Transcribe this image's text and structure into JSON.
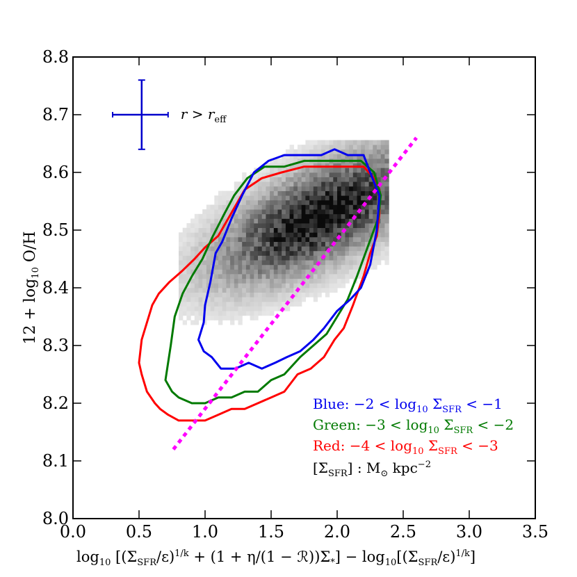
{
  "chart_data": {
    "type": "scatter",
    "xlabel": "log₁₀[(Σ_SFR/ε)^{1/k} + (1+η/(1−ℛ))Σ_*] − log₁₀[(Σ_SFR/ε)^{1/k}]",
    "ylabel": "12 + log₁₀ O/H",
    "xlim": [
      0.0,
      3.5
    ],
    "ylim": [
      8.0,
      8.8
    ],
    "x_ticks": [
      "0.0",
      "0.5",
      "1.0",
      "1.5",
      "2.0",
      "2.5",
      "3.0",
      "3.5"
    ],
    "y_ticks": [
      "8.0",
      "8.1",
      "8.2",
      "8.3",
      "8.4",
      "8.5",
      "8.6",
      "8.7",
      "8.8"
    ],
    "error_bar": {
      "label": "r > r_eff",
      "x": 0.52,
      "y": 8.7,
      "xerr": [
        0.3,
        0.72
      ],
      "yerr": [
        8.64,
        8.76
      ],
      "color": "#0000cc"
    },
    "fit_line": {
      "style": "dotted",
      "color": "#ff00ff",
      "points": [
        [
          0.76,
          8.12
        ],
        [
          2.6,
          8.66
        ]
      ]
    },
    "density": {
      "color": "grayscale",
      "x_range": [
        0.85,
        2.33
      ],
      "y_range": [
        8.18,
        8.63
      ],
      "peak": [
        1.85,
        8.52
      ]
    },
    "series": [
      {
        "name": "Blue:",
        "range": "−2 < log₁₀ Σ_SFR < −1",
        "color": "#0000ee",
        "contour": [
          [
            0.95,
            8.31
          ],
          [
            0.99,
            8.34
          ],
          [
            1.0,
            8.37
          ],
          [
            1.04,
            8.41
          ],
          [
            1.08,
            8.46
          ],
          [
            1.13,
            8.48
          ],
          [
            1.2,
            8.52
          ],
          [
            1.28,
            8.56
          ],
          [
            1.37,
            8.6
          ],
          [
            1.48,
            8.62
          ],
          [
            1.6,
            8.63
          ],
          [
            1.75,
            8.63
          ],
          [
            1.88,
            8.63
          ],
          [
            1.98,
            8.64
          ],
          [
            2.08,
            8.63
          ],
          [
            2.2,
            8.63
          ],
          [
            2.25,
            8.6
          ],
          [
            2.32,
            8.56
          ],
          [
            2.3,
            8.5
          ],
          [
            2.25,
            8.44
          ],
          [
            2.18,
            8.4
          ],
          [
            2.1,
            8.38
          ],
          [
            2.0,
            8.36
          ],
          [
            1.9,
            8.33
          ],
          [
            1.82,
            8.31
          ],
          [
            1.72,
            8.29
          ],
          [
            1.62,
            8.28
          ],
          [
            1.53,
            8.27
          ],
          [
            1.43,
            8.26
          ],
          [
            1.33,
            8.27
          ],
          [
            1.23,
            8.26
          ],
          [
            1.12,
            8.26
          ],
          [
            1.05,
            8.28
          ],
          [
            0.99,
            8.29
          ],
          [
            0.95,
            8.31
          ]
        ]
      },
      {
        "name": "Green:",
        "range": "−3 < log₁₀ Σ_SFR < −2",
        "color": "#007a00",
        "contour": [
          [
            0.7,
            8.24
          ],
          [
            0.72,
            8.27
          ],
          [
            0.74,
            8.3
          ],
          [
            0.77,
            8.35
          ],
          [
            0.83,
            8.39
          ],
          [
            0.9,
            8.42
          ],
          [
            0.98,
            8.45
          ],
          [
            1.06,
            8.49
          ],
          [
            1.15,
            8.53
          ],
          [
            1.22,
            8.56
          ],
          [
            1.32,
            8.59
          ],
          [
            1.45,
            8.61
          ],
          [
            1.6,
            8.61
          ],
          [
            1.75,
            8.62
          ],
          [
            1.9,
            8.62
          ],
          [
            2.05,
            8.62
          ],
          [
            2.18,
            8.62
          ],
          [
            2.28,
            8.6
          ],
          [
            2.33,
            8.56
          ],
          [
            2.31,
            8.52
          ],
          [
            2.23,
            8.47
          ],
          [
            2.15,
            8.42
          ],
          [
            2.08,
            8.38
          ],
          [
            2.0,
            8.35
          ],
          [
            1.92,
            8.32
          ],
          [
            1.82,
            8.3
          ],
          [
            1.72,
            8.28
          ],
          [
            1.6,
            8.25
          ],
          [
            1.5,
            8.24
          ],
          [
            1.4,
            8.22
          ],
          [
            1.3,
            8.22
          ],
          [
            1.2,
            8.21
          ],
          [
            1.1,
            8.21
          ],
          [
            1.0,
            8.2
          ],
          [
            0.9,
            8.2
          ],
          [
            0.8,
            8.21
          ],
          [
            0.75,
            8.22
          ],
          [
            0.7,
            8.24
          ]
        ]
      },
      {
        "name": "Red:",
        "range": "−4 < log₁₀ Σ_SFR < −3",
        "color": "#ff0000",
        "contour": [
          [
            0.62,
            8.2
          ],
          [
            0.56,
            8.22
          ],
          [
            0.52,
            8.25
          ],
          [
            0.5,
            8.27
          ],
          [
            0.52,
            8.31
          ],
          [
            0.56,
            8.34
          ],
          [
            0.6,
            8.37
          ],
          [
            0.65,
            8.39
          ],
          [
            0.73,
            8.41
          ],
          [
            0.83,
            8.43
          ],
          [
            0.92,
            8.45
          ],
          [
            1.0,
            8.47
          ],
          [
            1.1,
            8.49
          ],
          [
            1.2,
            8.53
          ],
          [
            1.3,
            8.57
          ],
          [
            1.43,
            8.59
          ],
          [
            1.58,
            8.6
          ],
          [
            1.75,
            8.61
          ],
          [
            1.92,
            8.61
          ],
          [
            2.08,
            8.61
          ],
          [
            2.2,
            8.61
          ],
          [
            2.28,
            8.59
          ],
          [
            2.32,
            8.57
          ],
          [
            2.32,
            8.53
          ],
          [
            2.3,
            8.49
          ],
          [
            2.25,
            8.46
          ],
          [
            2.2,
            8.42
          ],
          [
            2.12,
            8.37
          ],
          [
            2.05,
            8.33
          ],
          [
            1.98,
            8.31
          ],
          [
            1.9,
            8.28
          ],
          [
            1.8,
            8.26
          ],
          [
            1.7,
            8.25
          ],
          [
            1.6,
            8.22
          ],
          [
            1.5,
            8.21
          ],
          [
            1.4,
            8.2
          ],
          [
            1.3,
            8.19
          ],
          [
            1.2,
            8.19
          ],
          [
            1.1,
            8.18
          ],
          [
            1.0,
            8.17
          ],
          [
            0.9,
            8.17
          ],
          [
            0.8,
            8.17
          ],
          [
            0.72,
            8.18
          ],
          [
            0.66,
            8.19
          ],
          [
            0.62,
            8.2
          ]
        ]
      }
    ],
    "units_note": "[Σ_SFR] : M_⊙ kpc⁻²"
  }
}
